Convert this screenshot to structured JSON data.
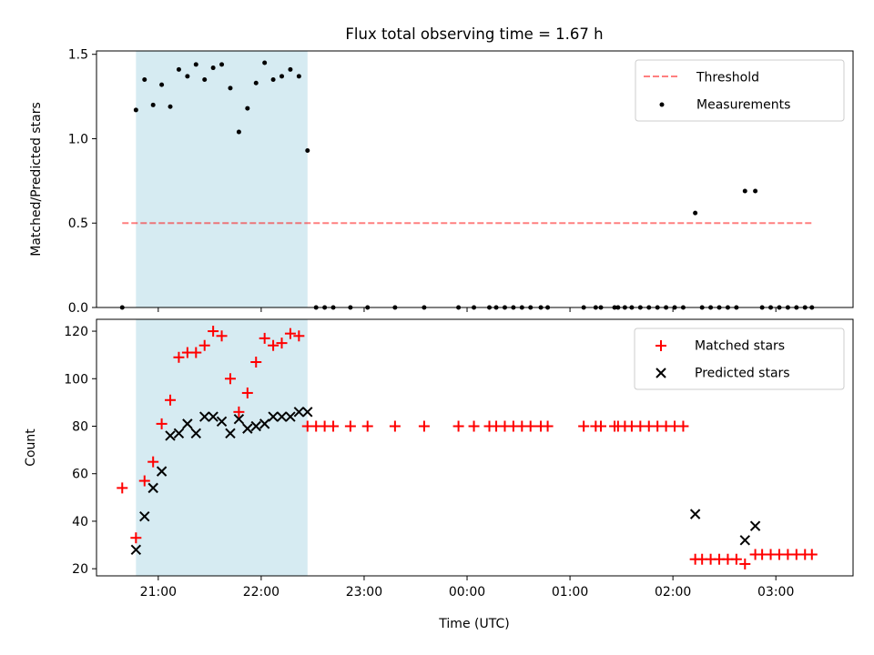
{
  "title": "Flux total observing time = 1.67 h",
  "colors": {
    "shade": "#add8e6",
    "threshold": "#ff0000",
    "matched": "#ff0000",
    "predicted": "#000000",
    "measurement": "#000000"
  },
  "chart_data": [
    {
      "type": "scatter",
      "ylabel": "Matched/Predicted stars",
      "xlim": [
        "20:24",
        "03:45"
      ],
      "ylim": [
        0,
        1.52
      ],
      "yticks": [
        0.0,
        0.5,
        1.0,
        1.5
      ],
      "ytick_labels": [
        "0.0",
        "0.5",
        "1.0",
        "1.5"
      ],
      "grid": false,
      "legend_position": "top-right",
      "shaded_interval": [
        "20:47",
        "22:27"
      ],
      "threshold": {
        "name": "Threshold",
        "y": 0.5,
        "x_range": [
          "20:39",
          "03:21"
        ]
      },
      "series": [
        {
          "name": "Measurements",
          "x": [
            "20:39",
            "20:47",
            "20:52",
            "20:57",
            "21:02",
            "21:07",
            "21:12",
            "21:17",
            "21:22",
            "21:27",
            "21:32",
            "21:37",
            "21:42",
            "21:47",
            "21:52",
            "21:57",
            "22:02",
            "22:07",
            "22:12",
            "22:17",
            "22:22",
            "22:27",
            "22:32",
            "22:37",
            "22:42",
            "22:52",
            "23:02",
            "23:18",
            "23:35",
            "23:55",
            "24:04",
            "24:13",
            "24:17",
            "24:22",
            "24:27",
            "24:32",
            "24:37",
            "24:43",
            "24:47",
            "25:08",
            "25:15",
            "25:18",
            "25:26",
            "25:28",
            "25:32",
            "25:36",
            "25:41",
            "25:46",
            "25:51",
            "25:56",
            "26:01",
            "26:06",
            "26:13",
            "26:17",
            "26:22",
            "26:27",
            "26:32",
            "26:37",
            "26:42",
            "26:48",
            "26:52",
            "26:57",
            "27:02",
            "27:07",
            "27:12",
            "27:17",
            "27:21"
          ],
          "y": [
            0,
            1.17,
            1.35,
            1.2,
            1.32,
            1.19,
            1.41,
            1.37,
            1.44,
            1.35,
            1.42,
            1.44,
            1.3,
            1.04,
            1.18,
            1.33,
            1.45,
            1.35,
            1.37,
            1.41,
            1.37,
            0.93,
            0,
            0,
            0,
            0,
            0,
            0,
            0,
            0,
            0,
            0,
            0,
            0,
            0,
            0,
            0,
            0,
            0,
            0,
            0,
            0,
            0,
            0,
            0,
            0,
            0,
            0,
            0,
            0,
            0,
            0,
            0.56,
            0,
            0,
            0,
            0,
            0,
            0.69,
            0.69,
            0,
            0,
            0,
            0,
            0,
            0,
            0
          ]
        }
      ]
    },
    {
      "type": "scatter",
      "xlabel": "Time (UTC)",
      "ylabel": "Count",
      "xlim": [
        "20:24",
        "03:45"
      ],
      "ylim": [
        17,
        125
      ],
      "xticks": [
        "21:00",
        "22:00",
        "23:00",
        "00:00",
        "01:00",
        "02:00",
        "03:00"
      ],
      "yticks": [
        20,
        40,
        60,
        80,
        100,
        120
      ],
      "ytick_labels": [
        "20",
        "40",
        "60",
        "80",
        "100",
        "120"
      ],
      "grid": false,
      "legend_position": "top-right",
      "shaded_interval": [
        "20:47",
        "22:27"
      ],
      "series": [
        {
          "name": "Matched stars",
          "x": [
            "20:39",
            "20:47",
            "20:52",
            "20:57",
            "21:02",
            "21:07",
            "21:12",
            "21:17",
            "21:22",
            "21:27",
            "21:32",
            "21:37",
            "21:42",
            "21:47",
            "21:52",
            "21:57",
            "22:02",
            "22:07",
            "22:12",
            "22:17",
            "22:22",
            "22:27",
            "22:32",
            "22:37",
            "22:42",
            "22:52",
            "23:02",
            "23:18",
            "23:35",
            "23:55",
            "24:04",
            "24:13",
            "24:17",
            "24:22",
            "24:27",
            "24:32",
            "24:37",
            "24:43",
            "24:47",
            "25:08",
            "25:15",
            "25:18",
            "25:26",
            "25:28",
            "25:32",
            "25:36",
            "25:41",
            "25:46",
            "25:51",
            "25:56",
            "26:01",
            "26:06",
            "26:13",
            "26:17",
            "26:22",
            "26:27",
            "26:32",
            "26:37",
            "26:42",
            "26:48",
            "26:52",
            "26:57",
            "27:02",
            "27:07",
            "27:12",
            "27:17",
            "27:21"
          ],
          "y": [
            54,
            33,
            57,
            65,
            81,
            91,
            109,
            111,
            111,
            114,
            120,
            118,
            100,
            86,
            94,
            107,
            117,
            114,
            115,
            119,
            118,
            80,
            80,
            80,
            80,
            80,
            80,
            80,
            80,
            80,
            80,
            80,
            80,
            80,
            80,
            80,
            80,
            80,
            80,
            80,
            80,
            80,
            80,
            80,
            80,
            80,
            80,
            80,
            80,
            80,
            80,
            80,
            24,
            24,
            24,
            24,
            24,
            24,
            22,
            26,
            26,
            26,
            26,
            26,
            26,
            26,
            26
          ]
        },
        {
          "name": "Predicted stars",
          "x": [
            "20:47",
            "20:52",
            "20:57",
            "21:02",
            "21:07",
            "21:12",
            "21:17",
            "21:22",
            "21:27",
            "21:32",
            "21:37",
            "21:42",
            "21:47",
            "21:52",
            "21:57",
            "22:02",
            "22:07",
            "22:12",
            "22:17",
            "22:22",
            "22:27",
            "26:13",
            "26:42",
            "26:48"
          ],
          "y": [
            28,
            42,
            54,
            61,
            76,
            77,
            81,
            77,
            84,
            84,
            82,
            77,
            83,
            79,
            80,
            81,
            84,
            84,
            84,
            86,
            86,
            43,
            32,
            38
          ]
        }
      ]
    }
  ]
}
